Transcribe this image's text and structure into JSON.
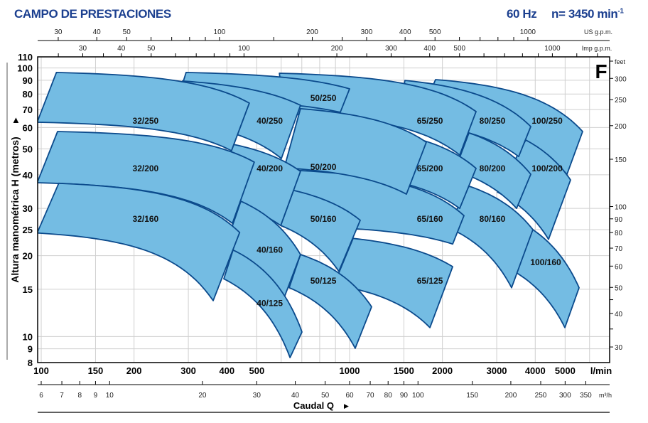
{
  "header": {
    "title": "CAMPO DE PRESTACIONES",
    "frequency": "60 Hz",
    "speed": "n= 3450 min",
    "speed_exp": "-1"
  },
  "colors": {
    "title": "#1b3f8f",
    "region_fill": "#74bce3",
    "region_stroke": "#0b4a8c",
    "grid": "#cfcfcf"
  },
  "chart_data": {
    "type": "area",
    "title": "",
    "series_letter": "F",
    "xscale": "log",
    "yscale": "log",
    "grid": true,
    "xlim": [
      100,
      6970
    ],
    "ylim": [
      8,
      110
    ],
    "axes": {
      "y_left": {
        "label": "Altura manométrica H (metros)",
        "ticks": [
          8,
          9,
          10,
          15,
          20,
          25,
          30,
          40,
          50,
          60,
          70,
          80,
          90,
          100,
          110
        ]
      },
      "y_right": {
        "unit": "feet",
        "ticks": [
          30,
          40,
          50,
          60,
          70,
          80,
          90,
          100,
          150,
          200,
          250,
          300
        ],
        "minor_ticks": [
          35,
          45
        ]
      },
      "x_bottom": {
        "unit": "l/min",
        "ticks": [
          100,
          150,
          200,
          300,
          400,
          500,
          1000,
          1500,
          2000,
          3000,
          4000,
          5000
        ]
      },
      "x_m3h": {
        "unit": "m³/h",
        "label": "Caudal Q",
        "ticks": [
          6,
          7,
          8,
          9,
          10,
          20,
          30,
          40,
          50,
          60,
          70,
          80,
          90,
          100,
          150,
          200,
          250,
          300,
          350
        ]
      },
      "x_us_gpm": {
        "unit": "US g.p.m.",
        "ticks": [
          30,
          40,
          50,
          100,
          200,
          300,
          400,
          500,
          1000
        ],
        "minor_ticks": [
          60,
          70,
          80,
          90,
          150,
          250,
          600,
          700,
          800,
          900,
          1500,
          1750
        ]
      },
      "x_imp_gpm": {
        "unit": "Imp g.p.m.",
        "ticks": [
          30,
          40,
          50,
          100,
          200,
          300,
          400,
          500,
          1000
        ],
        "minor_ticks": [
          25,
          35,
          60,
          70,
          80,
          90,
          150,
          250,
          600,
          700,
          800,
          900,
          1200,
          1400
        ]
      }
    },
    "regions": [
      {
        "name": "100/250",
        "tl": [
          1900,
          90.5
        ],
        "tr": [
          5699,
          58.0
        ],
        "br": [
          5071,
          40.2
        ],
        "bl": [
          1638,
          61.6
        ],
        "label_at": [
          4372,
          63.5
        ]
      },
      {
        "name": "100/200",
        "tl": [
          3727,
          53.9
        ],
        "tr": [
          5207,
          38.3
        ],
        "br": [
          4418,
          23.0
        ],
        "bl": [
          3016,
          34.5
        ],
        "label_at": [
          4372,
          42.3
        ]
      },
      {
        "name": "100/160",
        "tl": [
          3930,
          25.0
        ],
        "tr": [
          5549,
          15.2
        ],
        "br": [
          4991,
          10.8
        ],
        "bl": [
          3352,
          17.7
        ],
        "label_at": [
          4325,
          18.9
        ]
      },
      {
        "name": "80/250",
        "tl": [
          1512,
          89.9
        ],
        "tr": [
          3868,
          60.5
        ],
        "br": [
          3535,
          46.8
        ],
        "bl": [
          1435,
          63.5
        ],
        "label_at": [
          2905,
          63.5
        ]
      },
      {
        "name": "80/200",
        "tl": [
          2439,
          57.3
        ],
        "tr": [
          3868,
          40.2
        ],
        "br": [
          3479,
          30.0
        ],
        "bl": [
          2193,
          41.5
        ],
        "label_at": [
          2905,
          42.3
        ]
      },
      {
        "name": "80/160",
        "tl": [
          2439,
          36.3
        ],
        "tr": [
          3930,
          25.0
        ],
        "br": [
          3352,
          15.2
        ],
        "bl": [
          2080,
          25.5
        ],
        "label_at": [
          2905,
          27.4
        ]
      },
      {
        "name": "65/250",
        "tl": [
          592,
          95.6
        ],
        "tr": [
          2571,
          68.8
        ],
        "br": [
          2276,
          47.4
        ],
        "bl": [
          614,
          67.5
        ],
        "label_at": [
          1822,
          63.5
        ]
      },
      {
        "name": "65/200",
        "tl": [
          720,
          61.6
        ],
        "tr": [
          2571,
          42.3
        ],
        "br": [
          2276,
          30.0
        ],
        "bl": [
          683,
          41.5
        ],
        "label_at": [
          1822,
          42.3
        ]
      },
      {
        "name": "65/160",
        "tl": [
          683,
          41.5
        ],
        "tr": [
          2350,
          28.2
        ],
        "br": [
          2159,
          22.1
        ],
        "bl": [
          614,
          25.8
        ],
        "label_at": [
          1822,
          27.4
        ]
      },
      {
        "name": "65/125",
        "tl": [
          1027,
          23.2
        ],
        "tr": [
          2159,
          18.2
        ],
        "br": [
          1822,
          10.8
        ],
        "bl": [
          890,
          15.6
        ],
        "label_at": [
          1822,
          16.1
        ]
      },
      {
        "name": "50/250",
        "tl": [
          295,
          96.2
        ],
        "tr": [
          1000,
          83.6
        ],
        "br": [
          933,
          68.4
        ],
        "bl": [
          277,
          76.3
        ],
        "label_at": [
          822,
          77.2
        ]
      },
      {
        "name": "50/200",
        "tl": [
          693,
          70.5
        ],
        "tr": [
          1774,
          52.9
        ],
        "br": [
          1529,
          33.9
        ],
        "bl": [
          614,
          42.5
        ],
        "label_at": [
          822,
          42.8
        ]
      },
      {
        "name": "50/160",
        "tl": [
          658,
          35.0
        ],
        "tr": [
          1083,
          27.1
        ],
        "br": [
          923,
          17.5
        ],
        "bl": [
          598,
          25.9
        ],
        "label_at": [
          822,
          27.4
        ]
      },
      {
        "name": "50/125",
        "tl": [
          693,
          20.2
        ],
        "tr": [
          1179,
          12.9
        ],
        "br": [
          1043,
          9.04
        ],
        "bl": [
          637,
          15.2
        ],
        "label_at": [
          822,
          16.1
        ]
      },
      {
        "name": "40/250",
        "tl": [
          287,
          89.4
        ],
        "tr": [
          693,
          72.6
        ],
        "br": [
          601,
          46.0
        ],
        "bl": [
          263,
          63.5
        ],
        "label_at": [
          551,
          63.5
        ]
      },
      {
        "name": "40/200",
        "tl": [
          421,
          51.9
        ],
        "tr": [
          693,
          41.2
        ],
        "br": [
          598,
          25.9
        ],
        "bl": [
          361,
          32.5
        ],
        "label_at": [
          551,
          42.3
        ]
      },
      {
        "name": "40/160",
        "tl": [
          444,
          31.9
        ],
        "tr": [
          693,
          20.2
        ],
        "br": [
          614,
          14.0
        ],
        "bl": [
          393,
          21.2
        ],
        "label_at": [
          551,
          21.0
        ]
      },
      {
        "name": "40/125",
        "tl": [
          419,
          21.0
        ],
        "tr": [
          701,
          10.4
        ],
        "br": [
          641,
          8.35
        ],
        "bl": [
          391,
          16.4
        ],
        "label_at": [
          551,
          13.3
        ]
      },
      {
        "name": "32/250",
        "tl": [
          112,
          96.2
        ],
        "tr": [
          473,
          74.0
        ],
        "br": [
          414,
          49.2
        ],
        "bl": [
          97,
          62.8
        ],
        "label_at": [
          218,
          63.5
        ]
      },
      {
        "name": "32/200",
        "tl": [
          113,
          58.0
        ],
        "tr": [
          491,
          44.6
        ],
        "br": [
          417,
          26.4
        ],
        "bl": [
          97,
          37.4
        ],
        "label_at": [
          218,
          42.3
        ]
      },
      {
        "name": "32/160",
        "tl": [
          114,
          37.2
        ],
        "tr": [
          440,
          24.4
        ],
        "br": [
          361,
          13.6
        ],
        "bl": [
          97,
          24.3
        ],
        "label_at": [
          218,
          27.4
        ]
      }
    ]
  }
}
